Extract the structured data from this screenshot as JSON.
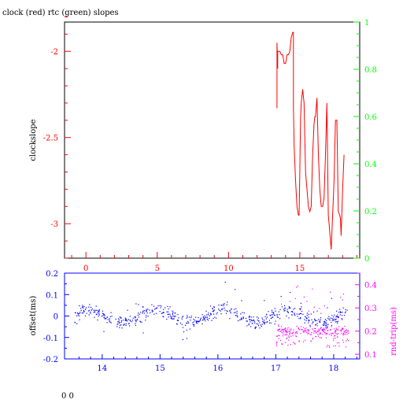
{
  "title": "clock (red) rtc (green) slopes",
  "footer": "0 0",
  "colors": {
    "red": "#ff0000",
    "green": "#00ff00",
    "blue": "#0000ff",
    "magenta": "#ff00ff",
    "black": "#000000"
  },
  "chart_data": [
    {
      "type": "line",
      "ylabel": "clockslope",
      "xlim": [
        -1.5,
        19.2
      ],
      "ylim": [
        -3.2,
        -1.83
      ],
      "y2lim": [
        0,
        1
      ],
      "x_ticks": [
        "0",
        "5",
        "10",
        "15"
      ],
      "y_ticks": [
        "-2",
        "-2.5",
        "-3"
      ],
      "y2_ticks": [
        "0",
        "0.2",
        "0.4",
        "0.6",
        "0.8",
        "1"
      ],
      "series": [
        {
          "color": "red",
          "x": [
            13.4,
            13.4,
            13.45,
            13.45,
            13.6,
            13.7,
            13.8,
            13.9,
            14.0,
            14.05,
            14.1,
            14.2,
            14.3,
            14.4,
            14.5,
            14.55,
            14.55,
            14.6,
            14.7,
            14.8,
            14.9,
            14.95,
            15.0,
            15.05,
            15.1,
            15.2,
            15.3,
            15.4,
            15.5,
            15.6,
            15.7,
            15.8,
            15.9,
            16.0,
            16.05,
            16.1,
            16.2,
            16.3,
            16.4,
            16.5,
            16.6,
            16.7,
            16.8,
            16.9,
            17.0,
            17.05,
            17.1,
            17.15,
            17.2,
            17.3,
            17.4,
            17.5,
            17.6,
            17.7,
            17.8,
            17.85,
            17.9,
            18.0,
            18.1
          ],
          "y": [
            -2.33,
            -1.95,
            -2.1,
            -2.0,
            -2.0,
            -2.02,
            -2.02,
            -2.07,
            -2.07,
            -2.05,
            -2.02,
            -2.02,
            -2.0,
            -1.92,
            -1.89,
            -1.89,
            -2.33,
            -2.55,
            -2.75,
            -2.9,
            -2.95,
            -2.95,
            -2.7,
            -2.4,
            -2.3,
            -2.22,
            -2.3,
            -2.7,
            -2.8,
            -2.9,
            -2.93,
            -2.9,
            -2.6,
            -2.42,
            -2.38,
            -2.38,
            -2.27,
            -2.6,
            -2.8,
            -2.9,
            -2.9,
            -2.85,
            -2.6,
            -2.3,
            -2.95,
            -3.0,
            -3.05,
            -3.1,
            -3.15,
            -2.95,
            -2.75,
            -2.4,
            -2.4,
            -2.93,
            -2.95,
            -2.97,
            -3.07,
            -2.8,
            -2.6
          ]
        }
      ]
    },
    {
      "type": "scatter",
      "ylabel": "offset(ms)",
      "y2label": "rnd-trip(ms)",
      "xlim": [
        13.35,
        18.45
      ],
      "ylim": [
        -0.2,
        0.2
      ],
      "y2lim": [
        0.08,
        0.45
      ],
      "x_ticks": [
        "14",
        "15",
        "16",
        "17",
        "18"
      ],
      "y_ticks": [
        "0.2",
        "0.1",
        "0",
        "-0.1",
        "-0.2"
      ],
      "y2_ticks": [
        "0.4",
        "0.3",
        "0.2",
        "0.1"
      ],
      "series": [
        {
          "color": "blue",
          "axis": "left",
          "x_range": [
            13.5,
            18.25
          ],
          "center": 0.0,
          "spread": 0.045,
          "count": 620
        },
        {
          "color": "magenta",
          "axis": "right",
          "x_range": [
            17.0,
            18.25
          ],
          "center": 0.2,
          "spread": 0.035,
          "count": 260
        }
      ]
    }
  ]
}
